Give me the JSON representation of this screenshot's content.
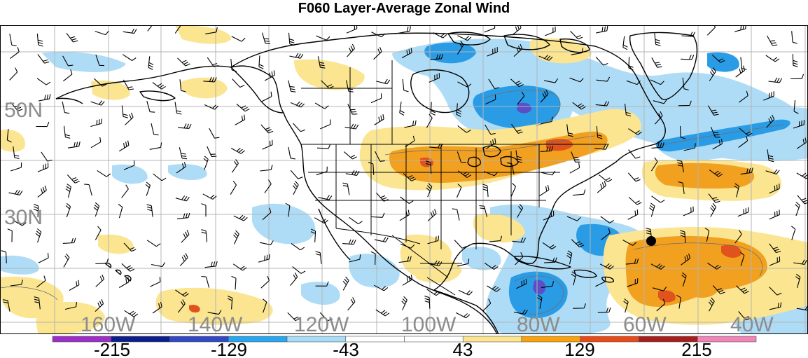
{
  "title": "F060 Layer-Average Zonal Wind",
  "lat_labels": [
    "50N",
    "30N"
  ],
  "lon_labels": [
    "160W",
    "140W",
    "120W",
    "100W",
    "80W",
    "60W",
    "40W"
  ],
  "colorbar": {
    "colors": [
      "#9b2fc6",
      "#0c1e8a",
      "#3348c2",
      "#2aa6ee",
      "#a8dcf7",
      "#ffffff",
      "#ffffff",
      "#fbe590",
      "#f8a30e",
      "#e74c18",
      "#a61f1f",
      "#f285b6"
    ],
    "tick_labels": [
      "-215",
      "-129",
      "-43",
      "43",
      "129",
      "215"
    ]
  },
  "colors": {
    "blue_dark": "#2a9ce6",
    "blue_light": "#aedcf6",
    "yellow": "#fbe590",
    "orange": "#f2a020",
    "red": "#e0531c",
    "purple": "#5a4fc8",
    "grid": "#b4b4b4",
    "land": "#000000"
  }
}
